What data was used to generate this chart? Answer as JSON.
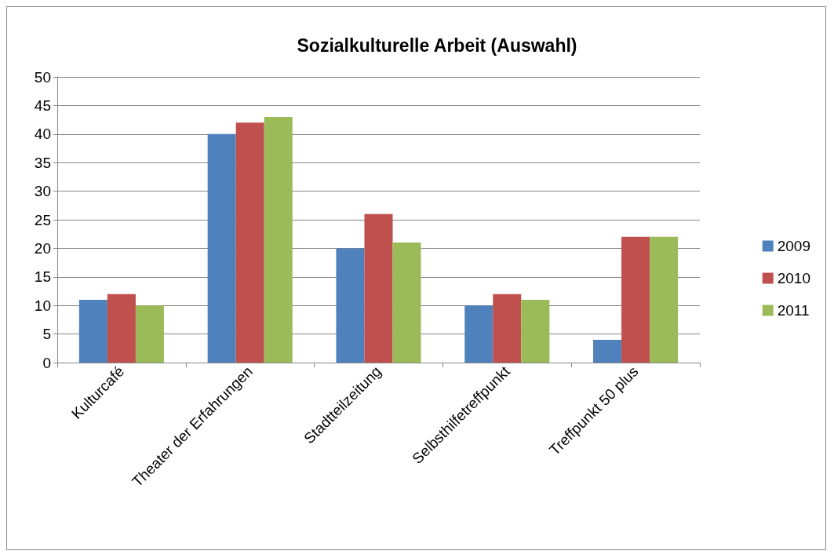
{
  "chart_data": {
    "type": "bar",
    "title": "Sozialkulturelle Arbeit (Auswahl)",
    "categories": [
      "Kulturcafé",
      "Theater der Erfahrungen",
      "Stadtteilzeitung",
      "Selbsthilfetreffpunkt",
      "Treffpunkt 50 plus"
    ],
    "series": [
      {
        "name": "2009",
        "color": "#4f81bd",
        "values": [
          11,
          40,
          20,
          10,
          4
        ]
      },
      {
        "name": "2010",
        "color": "#c0504d",
        "values": [
          12,
          42,
          26,
          12,
          22
        ]
      },
      {
        "name": "2011",
        "color": "#9bbb59",
        "values": [
          10,
          43,
          21,
          11,
          22
        ]
      }
    ],
    "ylim": [
      0,
      50
    ],
    "yticks": [
      0,
      5,
      10,
      15,
      20,
      25,
      30,
      35,
      40,
      45,
      50
    ],
    "grid": "y",
    "legend": "right"
  }
}
